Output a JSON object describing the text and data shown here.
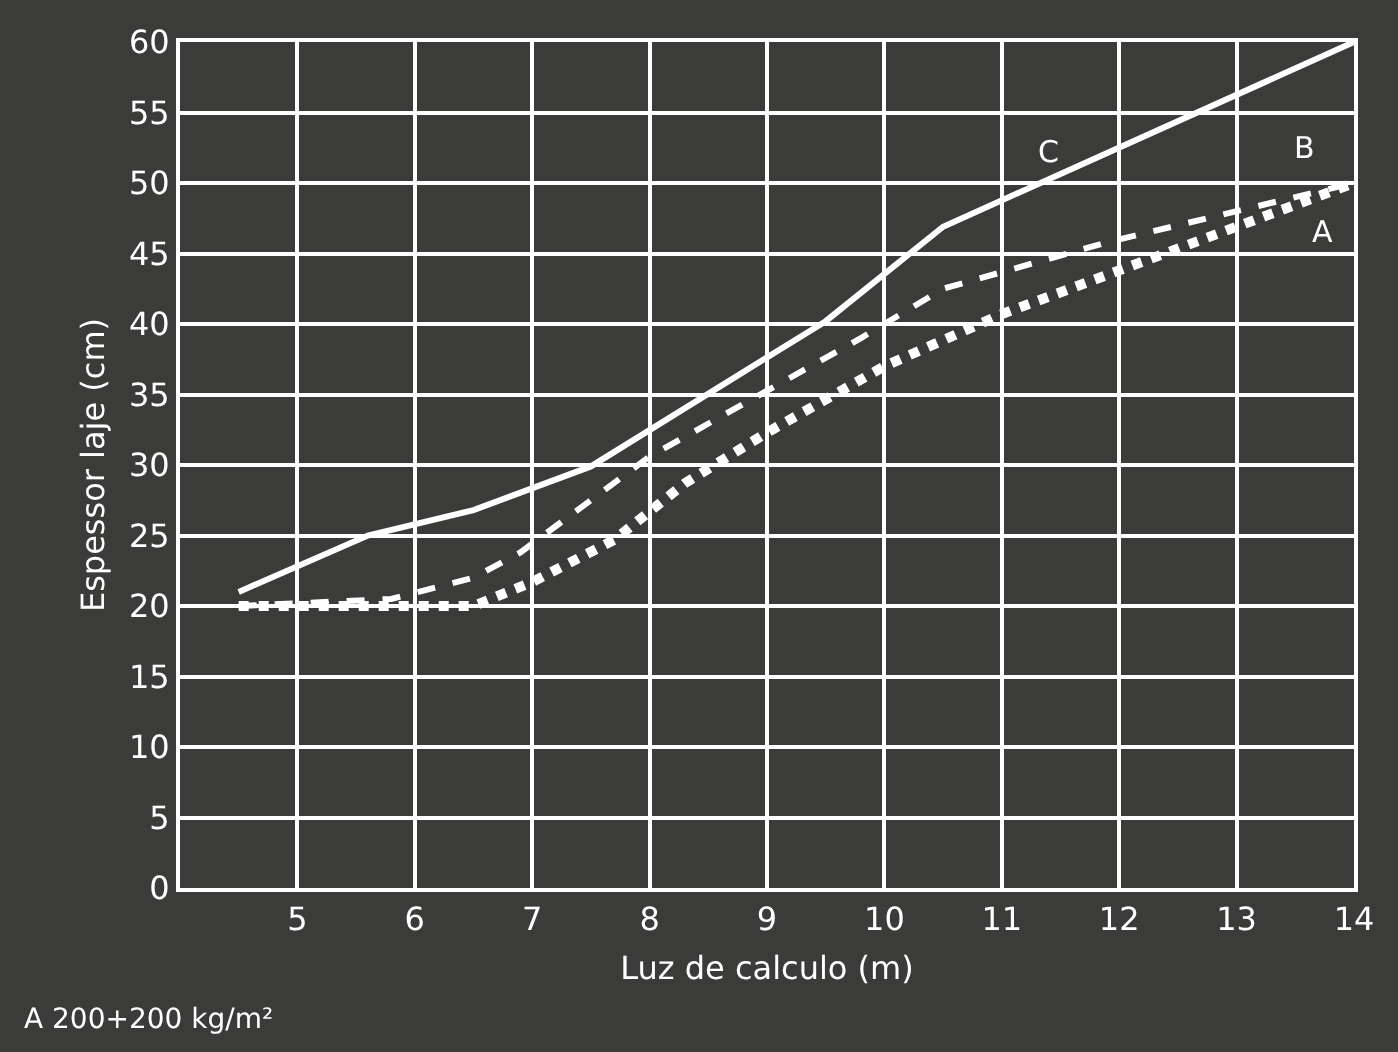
{
  "chart_data": {
    "type": "line",
    "xlabel": "Luz de calculo (m)",
    "ylabel": "Espessor laje (cm)",
    "xlim": [
      4,
      14
    ],
    "xticks": [
      5,
      6,
      7,
      8,
      9,
      10,
      11,
      12,
      13,
      14
    ],
    "ylim": [
      0,
      60
    ],
    "yticks": [
      0,
      5,
      10,
      15,
      20,
      25,
      30,
      35,
      40,
      45,
      50,
      55,
      60
    ],
    "grid": true,
    "legend": false,
    "series": [
      {
        "name": "C",
        "color": "#ffffff",
        "line_style": "solid",
        "x": [
          4.5,
          5.6,
          6.5,
          7.5,
          9.5,
          10.5,
          14
        ],
        "values": [
          21,
          25,
          26.8,
          29.9,
          40.2,
          46.9,
          60
        ]
      },
      {
        "name": "B",
        "color": "#ffffff",
        "line_style": "dashed",
        "x": [
          4.5,
          5.8,
          6.5,
          6.9,
          8,
          9.8,
          10.5,
          11.9,
          14
        ],
        "values": [
          20,
          20.5,
          22,
          23.8,
          30.6,
          39,
          42.5,
          45.8,
          50
        ]
      },
      {
        "name": "A",
        "color": "#ffffff",
        "line_style": "dotted",
        "x": [
          4.5,
          6.5,
          7,
          7.7,
          8.3,
          9,
          10,
          11,
          12,
          13,
          14
        ],
        "values": [
          20,
          20,
          21.7,
          24.7,
          28.7,
          32.3,
          37,
          40.7,
          43.8,
          46.9,
          50
        ]
      }
    ],
    "annotations": [
      "A 200+200 kg/m²"
    ]
  }
}
